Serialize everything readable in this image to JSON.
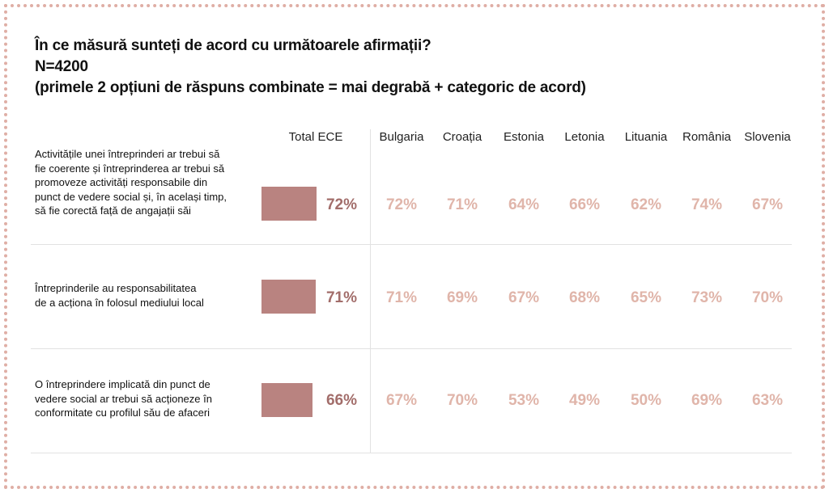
{
  "title": {
    "line1": "În ce măsură sunteți de acord cu următoarele afirmații?",
    "line2": "N=4200",
    "line3": "(primele 2 opțiuni de răspuns combinate = mai degrabă + categoric de acord)"
  },
  "colors": {
    "bar": "#b98380",
    "total_text": "#a26d6a",
    "country_text": "#e0b5aa",
    "frame_dots": "#dfaea5"
  },
  "chart_data": {
    "type": "table",
    "title": "În ce măsură sunteți de acord cu următoarele afirmații?",
    "subtitle": "N=4200 (primele 2 opțiuni de răspuns combinate = mai degrabă + categoric de acord)",
    "columns": [
      "Total ECE",
      "Bulgaria",
      "Croația",
      "Estonia",
      "Letonia",
      "Lituania",
      "România",
      "Slovenia"
    ],
    "unit": "%",
    "bar_max": 100,
    "rows": [
      {
        "label_lines": [
          "Activitățile unei întreprinderi ar trebui să",
          "fie coerente și întreprinderea ar trebui să",
          "promoveze activități responsabile din",
          "punct de vedere social și, în același timp,",
          "să fie corectă față de angajații săi"
        ],
        "total": 72,
        "total_label": "72%",
        "values": [
          72,
          71,
          64,
          66,
          62,
          74,
          67
        ],
        "value_labels": [
          "72%",
          "71%",
          "64%",
          "66%",
          "62%",
          "74%",
          "67%"
        ]
      },
      {
        "label_lines": [
          "Întreprinderile au responsabilitatea",
          "de a acționa în folosul mediului local"
        ],
        "total": 71,
        "total_label": "71%",
        "values": [
          71,
          69,
          67,
          68,
          65,
          73,
          70
        ],
        "value_labels": [
          "71%",
          "69%",
          "67%",
          "68%",
          "65%",
          "73%",
          "70%"
        ]
      },
      {
        "label_lines": [
          "O întreprindere implicată din punct de",
          "vedere social ar trebui să acționeze în",
          "conformitate cu profilul său de afaceri"
        ],
        "total": 66,
        "total_label": "66%",
        "values": [
          67,
          70,
          53,
          49,
          50,
          69,
          63
        ],
        "value_labels": [
          "67%",
          "70%",
          "53%",
          "49%",
          "50%",
          "69%",
          "63%"
        ]
      }
    ]
  }
}
